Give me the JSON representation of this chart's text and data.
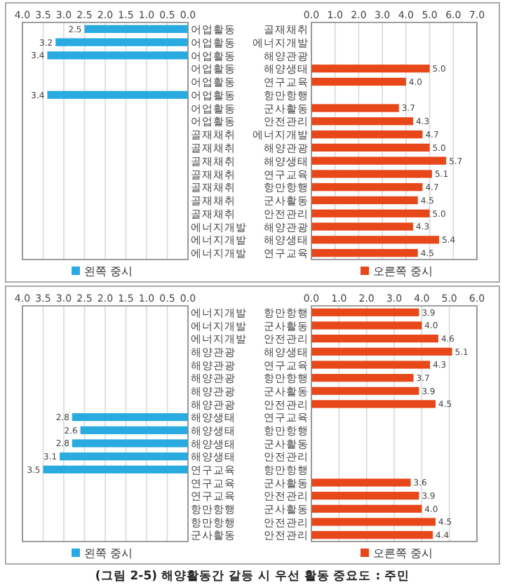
{
  "chart_data": [
    {
      "type": "bar",
      "orientation": "horizontal",
      "categories": [
        "어업활동",
        "어업활동",
        "어업활동",
        "어업활동",
        "어업활동",
        "어업활동",
        "어업활동",
        "어업활동",
        "골재채취",
        "골재채취",
        "골재채취",
        "골재채취",
        "골재채취",
        "골재채취",
        "골재채취",
        "에너지개발",
        "에너지개발",
        "에너지개발"
      ],
      "series": [
        {
          "name": "왼쪽 중시",
          "color": "#29abe2",
          "values": [
            2.5,
            3.2,
            3.4,
            null,
            null,
            3.4,
            null,
            null,
            null,
            null,
            null,
            null,
            null,
            null,
            null,
            null,
            null,
            null
          ],
          "value_labels": [
            "2.5",
            "3.2",
            "3.4",
            null,
            null,
            "3.4",
            null,
            null,
            null,
            null,
            null,
            null,
            null,
            null,
            null,
            null,
            null,
            null
          ]
        }
      ],
      "xlim": [
        4.0,
        0.0
      ],
      "xticks": [
        {
          "value": 4,
          "label": "4.0"
        },
        {
          "value": 3.5,
          "label": "3.5"
        },
        {
          "value": 3,
          "label": "3.0"
        },
        {
          "value": 2.5,
          "label": "2.5"
        },
        {
          "value": 2,
          "label": "2.0"
        },
        {
          "value": 1.5,
          "label": "1.5"
        },
        {
          "value": 1,
          "label": "1.0"
        },
        {
          "value": 0.5,
          "label": "0.5"
        },
        {
          "value": 0,
          "label": "0.0"
        }
      ],
      "grid": "x",
      "legend": "bottom"
    },
    {
      "type": "bar",
      "orientation": "horizontal",
      "categories": [
        "골재채취",
        "에너지개발",
        "해양관광",
        "해양생태",
        "연구교육",
        "항만항행",
        "군사활동",
        "안전관리",
        "에너지개발",
        "해양관광",
        "해양생태",
        "연구교육",
        "항만항행",
        "군사활동",
        "안전관리",
        "해양관광",
        "해양생태",
        "연구교육"
      ],
      "series": [
        {
          "name": "오른쪽 중시",
          "color": "#e8471a",
          "values": [
            null,
            null,
            null,
            5.0,
            4.0,
            null,
            3.7,
            4.3,
            4.7,
            5.0,
            5.7,
            5.1,
            4.7,
            4.5,
            5.0,
            4.3,
            5.4,
            4.5
          ],
          "value_labels": [
            null,
            null,
            null,
            "5.0",
            "4.0",
            null,
            "3.7",
            "4.3",
            "4.7",
            "5.0",
            "5.7",
            "5.1",
            "4.7",
            "4.5",
            "5.0",
            "4.3",
            "5.4",
            "4.5"
          ]
        }
      ],
      "xlim": [
        0.0,
        7.0
      ],
      "xticks": [
        {
          "value": 0,
          "label": "0.0"
        },
        {
          "value": 1,
          "label": "1.0"
        },
        {
          "value": 2,
          "label": "2.0"
        },
        {
          "value": 3,
          "label": "3.0"
        },
        {
          "value": 4,
          "label": "4.0"
        },
        {
          "value": 5,
          "label": "5.0"
        },
        {
          "value": 6,
          "label": "6.0"
        },
        {
          "value": 7,
          "label": "7.0"
        }
      ],
      "grid": "x",
      "legend": "bottom"
    },
    {
      "type": "bar",
      "orientation": "horizontal",
      "categories": [
        "에너지개발",
        "에너지개발",
        "에너지개발",
        "해양관광",
        "해양관광",
        "해양관광",
        "해양관광",
        "해양관광",
        "해양생태",
        "해양생태",
        "해양생태",
        "해양생태",
        "연구교육",
        "연구교육",
        "연구교육",
        "항만항행",
        "항만항행",
        "군사활동"
      ],
      "series": [
        {
          "name": "왼쪽 중시",
          "color": "#29abe2",
          "values": [
            null,
            null,
            null,
            null,
            null,
            null,
            null,
            null,
            2.8,
            2.6,
            2.8,
            3.1,
            3.5,
            null,
            null,
            null,
            null,
            null
          ],
          "value_labels": [
            null,
            null,
            null,
            null,
            null,
            null,
            null,
            null,
            "2.8",
            "2.6",
            "2.8",
            "3.1",
            "3.5",
            null,
            null,
            null,
            null,
            null
          ]
        }
      ],
      "xlim": [
        4.0,
        0.0
      ],
      "xticks": [
        {
          "value": 4,
          "label": "4.0"
        },
        {
          "value": 3.5,
          "label": "3.5"
        },
        {
          "value": 3,
          "label": "3.0"
        },
        {
          "value": 2.5,
          "label": "2.5"
        },
        {
          "value": 2,
          "label": "2.0"
        },
        {
          "value": 1.5,
          "label": "1.5"
        },
        {
          "value": 1,
          "label": "1.0"
        },
        {
          "value": 0.5,
          "label": "0.5"
        },
        {
          "value": 0,
          "label": "0.0"
        }
      ],
      "grid": "x",
      "legend": "bottom"
    },
    {
      "type": "bar",
      "orientation": "horizontal",
      "categories": [
        "항만항행",
        "군사활동",
        "안전관리",
        "해양생태",
        "연구교육",
        "항만항행",
        "군사활동",
        "안전관리",
        "연구교육",
        "항만항행",
        "군사활동",
        "안전관리",
        "항만항행",
        "군사활동",
        "안전관리",
        "군사활동",
        "안전관리",
        "안전관리"
      ],
      "series": [
        {
          "name": "오른쪽 중시",
          "color": "#e8471a",
          "values": [
            3.9,
            4.0,
            4.6,
            5.1,
            4.3,
            3.7,
            3.9,
            4.5,
            null,
            null,
            null,
            null,
            null,
            3.6,
            3.9,
            4.0,
            4.5,
            4.4
          ],
          "value_labels": [
            "3.9",
            "4.0",
            "4.6",
            "5.1",
            "4.3",
            "3.7",
            "3.9",
            "4.5",
            null,
            null,
            null,
            null,
            null,
            "3.6",
            "3.9",
            "4.0",
            "4.5",
            "4.4"
          ]
        }
      ],
      "xlim": [
        0.0,
        6.0
      ],
      "xticks": [
        {
          "value": 0,
          "label": "0.0"
        },
        {
          "value": 1,
          "label": "1.0"
        },
        {
          "value": 2,
          "label": "2.0"
        },
        {
          "value": 3,
          "label": "3.0"
        },
        {
          "value": 4,
          "label": "4.0"
        },
        {
          "value": 5,
          "label": "5.0"
        },
        {
          "value": 6,
          "label": "6.0"
        }
      ],
      "grid": "x",
      "legend": "bottom",
      "annotations": [
        "(그림 2-5) 해양활동간 갈등 시 우선 활동 중요도 : 주민"
      ]
    }
  ]
}
